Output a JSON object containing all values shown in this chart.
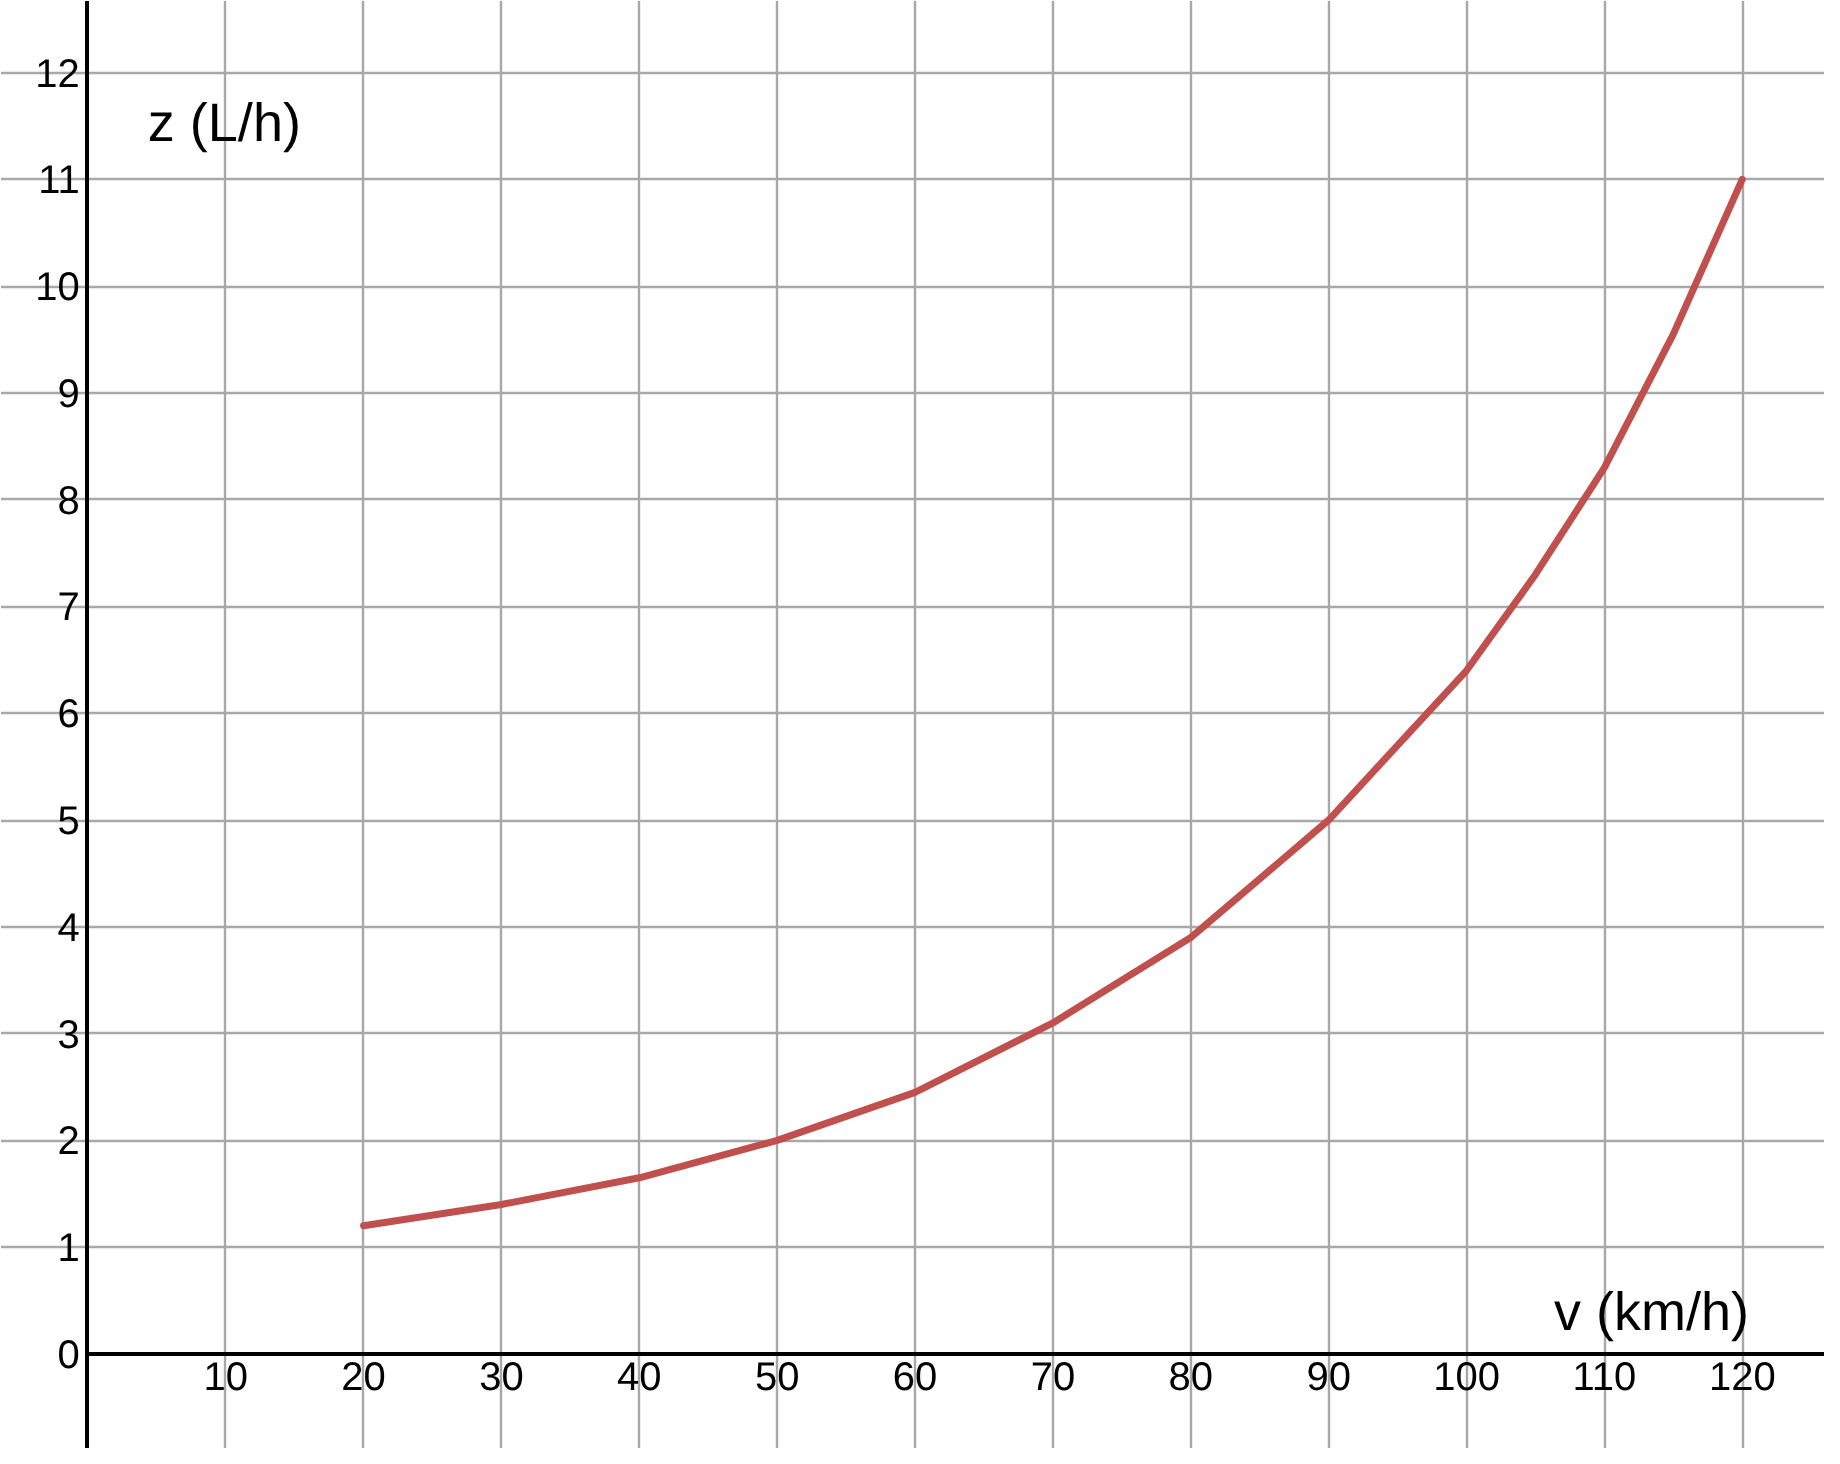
{
  "chart_data": {
    "type": "line",
    "xlabel": "v (km/h)",
    "ylabel": "z (L/h)",
    "x": [
      20,
      30,
      40,
      50,
      60,
      70,
      80,
      90,
      100,
      105,
      110,
      115,
      120
    ],
    "series": [
      {
        "color": "#c0504d",
        "values": [
          1.2,
          1.4,
          1.65,
          2.0,
          2.45,
          3.1,
          3.9,
          5.0,
          6.4,
          7.3,
          8.3,
          9.55,
          11.0
        ]
      }
    ],
    "xlim": [
      -6.3,
      126
    ],
    "ylim": [
      -0.89,
      12.67
    ],
    "xticks": [
      {
        "value": 0,
        "label": null
      },
      10,
      20,
      30,
      40,
      50,
      60,
      70,
      80,
      90,
      100,
      110,
      120
    ],
    "yticks": [
      0,
      1,
      2,
      3,
      4,
      5,
      6,
      7,
      8,
      9,
      10,
      11,
      12
    ],
    "grid": true,
    "marker": "none",
    "line_style": "solid"
  }
}
